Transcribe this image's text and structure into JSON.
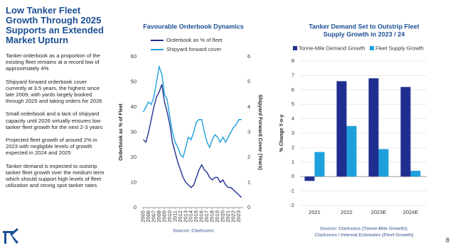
{
  "slide": {
    "title": "Low Tanker Fleet Growth Through 2025 Supports an Extended Market Upturn",
    "bullets": [
      "Tanker orderbook as a proportion of the existing fleet remains at a record low of approximately 4%",
      "Shipyard forward orderbook cover currently at 3.5 years, the highest since late 2009, with yards largely booked through 2025 and taking orders for 2026",
      "Small orderbook and a lack of shipyard capacity until 2026 virtually ensures low tanker fleet growth for the next 2-3 years",
      "Projected fleet growth of around 2% in 2023 with negligible levels of growth expected in 2024 and 2025",
      "Tanker demand is expected to outstrip tanker fleet growth over the medium term which should support high levels of fleet utilization and strong spot tanker rates"
    ],
    "page_number": "8"
  },
  "chart_data": [
    {
      "type": "line",
      "title": [
        "Favourable Orderbook Dynamics"
      ],
      "ylabel": "Orderbook as % of Fleet",
      "y2label": "Shipyard Forward Cover (Years)",
      "source": [
        "Source: Clarksons"
      ],
      "x": [
        2005,
        2005.5,
        2006,
        2006.5,
        2007,
        2007.5,
        2008,
        2008.5,
        2009,
        2009.5,
        2010,
        2010.5,
        2011,
        2011.5,
        2012,
        2012.5,
        2013,
        2013.5,
        2014,
        2014.5,
        2015,
        2015.5,
        2016,
        2016.5,
        2017,
        2017.5,
        2018,
        2018.5,
        2019,
        2019.5,
        2020,
        2020.5,
        2021,
        2021.5,
        2022,
        2022.5,
        2023,
        2023.5
      ],
      "xlim": [
        2004.8,
        2023.8
      ],
      "xticks": [
        2005,
        2006,
        2007,
        2008,
        2009,
        2010,
        2011,
        2012,
        2013,
        2014,
        2015,
        2016,
        2017,
        2018,
        2019,
        2020,
        2021,
        2022,
        2023
      ],
      "ylim": [
        0,
        60
      ],
      "yticks": [
        0,
        10,
        20,
        30,
        40,
        50,
        60
      ],
      "y2lim": [
        0,
        6
      ],
      "y2ticks": [
        0,
        1,
        2,
        3,
        4,
        5,
        6
      ],
      "series": [
        {
          "name": "Orderbook as % of fleet",
          "color": "#1f2f8f",
          "values": [
            27,
            26,
            30,
            35,
            40,
            44,
            46,
            49,
            42,
            38,
            33,
            26,
            22,
            18,
            15,
            12,
            10,
            9,
            8,
            9,
            12,
            15,
            17,
            15,
            14,
            12,
            11,
            12,
            12,
            10,
            11,
            9,
            8,
            8,
            7,
            6,
            5,
            4
          ]
        },
        {
          "name": "Shipyard forward cover",
          "color": "#1ea0dc",
          "axis": "y2",
          "values": [
            3.8,
            4.0,
            4.2,
            4.1,
            4.4,
            5.0,
            5.6,
            5.3,
            4.5,
            4.3,
            3.6,
            3.0,
            2.6,
            2.4,
            2.1,
            2.0,
            2.4,
            2.8,
            2.7,
            3.0,
            3.4,
            3.5,
            3.5,
            3.0,
            2.6,
            2.4,
            2.7,
            2.9,
            2.8,
            2.6,
            2.8,
            2.6,
            2.8,
            3.0,
            3.2,
            3.3,
            3.5,
            3.5
          ]
        }
      ]
    },
    {
      "type": "bar",
      "title": [
        "Tanker Demand Set to Outstrip Fleet",
        "Supply Growth in 2023 / 24"
      ],
      "ylabel": "% Change Y-o-y",
      "source": [
        "Source: Clarksons (Tonne-Mile Growth);",
        "Clarksons / Internal Estimates (Fleet Growth)"
      ],
      "categories": [
        "2021",
        "2022",
        "2023E",
        "2024E"
      ],
      "ylim": [
        -2,
        8
      ],
      "yticks": [
        -2,
        -1,
        0,
        1,
        2,
        3,
        4,
        5,
        6,
        7,
        8
      ],
      "grid": true,
      "series": [
        {
          "name": "Tonne-Mile Demand Growth",
          "color": "#1f2f8f",
          "values": [
            -0.3,
            6.6,
            6.8,
            6.2
          ]
        },
        {
          "name": "Fleet Supply Growth",
          "color": "#1ea0dc",
          "values": [
            1.7,
            3.5,
            1.9,
            0.4
          ]
        }
      ]
    }
  ]
}
